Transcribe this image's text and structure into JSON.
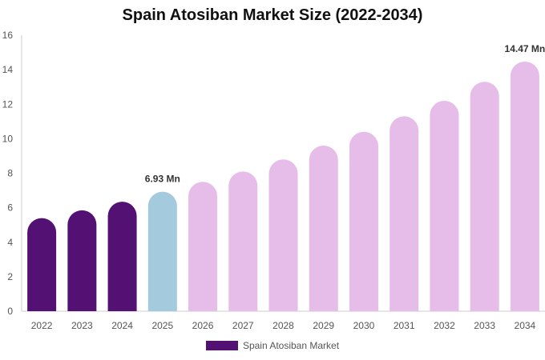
{
  "chart_data": {
    "type": "bar",
    "title": "Spain Atosiban Market Size (2022-2034)",
    "xlabel": "",
    "ylabel": "",
    "ylim": [
      0,
      16
    ],
    "yticks": [
      "0",
      "2",
      "4",
      "6",
      "8",
      "10",
      "12",
      "14",
      "16"
    ],
    "categories": [
      "2022",
      "2023",
      "2024",
      "2025",
      "2026",
      "2027",
      "2028",
      "2029",
      "2030",
      "2031",
      "2032",
      "2033",
      "2034"
    ],
    "series": [
      {
        "name": "Spain Atosiban Market",
        "values": [
          5.4,
          5.85,
          6.35,
          6.93,
          7.5,
          8.1,
          8.8,
          9.6,
          10.4,
          11.3,
          12.2,
          13.3,
          14.47
        ]
      }
    ],
    "data_labels": [
      {
        "category": "2025",
        "text": "6.93 Mn"
      },
      {
        "category": "2034",
        "text": "14.47 Mn"
      }
    ],
    "grid": false,
    "legend_placement": "bottom-center",
    "colors": {
      "historical": "#521173",
      "current": "#a4cade",
      "forecast": "#e6bce9",
      "axis": "#cccccc"
    },
    "color_groups": {
      "historical": [
        "2022",
        "2023",
        "2024"
      ],
      "current": [
        "2025"
      ],
      "forecast": [
        "2026",
        "2027",
        "2028",
        "2029",
        "2030",
        "2031",
        "2032",
        "2033",
        "2034"
      ]
    }
  }
}
